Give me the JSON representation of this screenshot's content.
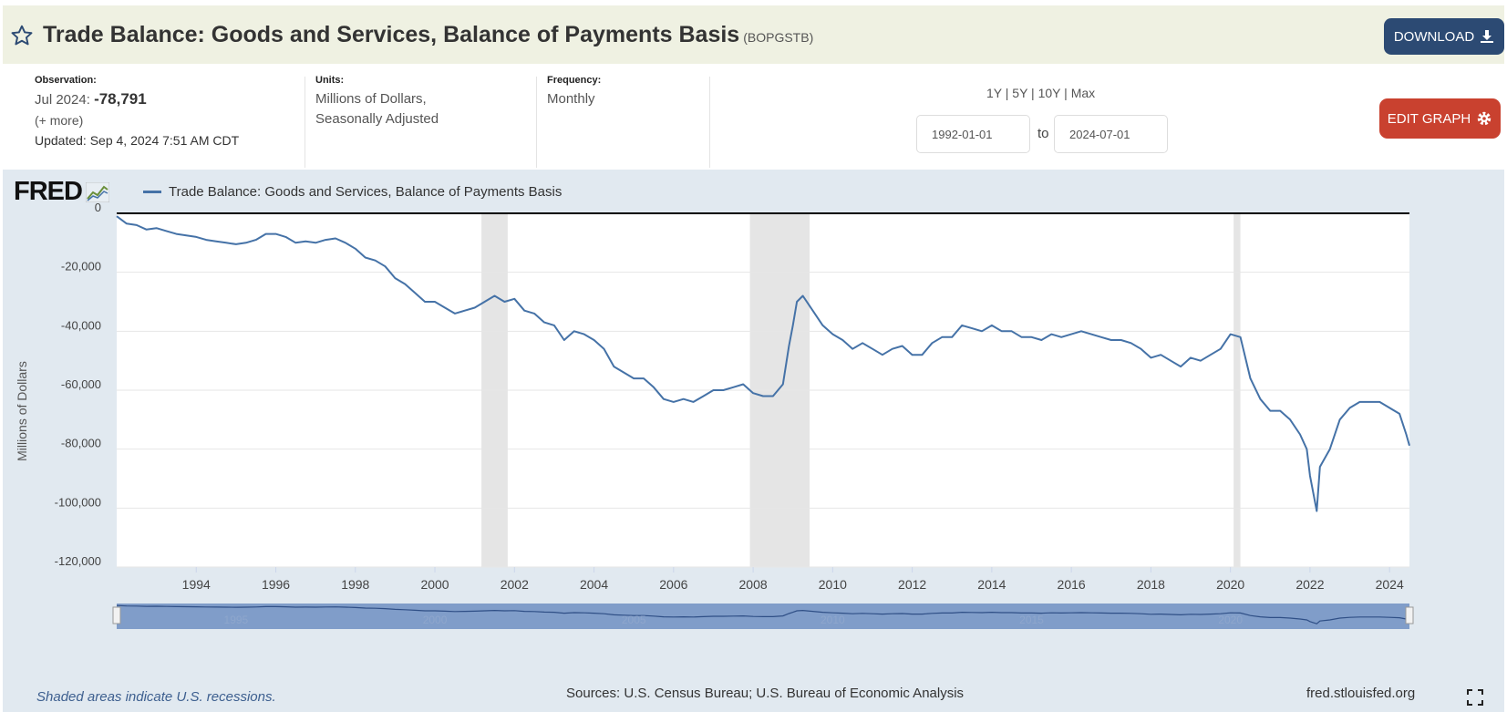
{
  "header": {
    "title": "Trade Balance: Goods and Services, Balance of Payments Basis",
    "series_id": "(BOPGSTB)",
    "download_label": "DOWNLOAD"
  },
  "observation": {
    "label": "Observation:",
    "date": "Jul 2024:",
    "value": "-78,791",
    "more": "(+ more)",
    "updated_label": "Updated:",
    "updated": "Sep 4, 2024 7:51 AM CDT"
  },
  "units": {
    "label": "Units:",
    "line1": "Millions of Dollars,",
    "line2": "Seasonally Adjusted"
  },
  "frequency": {
    "label": "Frequency:",
    "value": "Monthly"
  },
  "range": {
    "links": [
      "1Y",
      "5Y",
      "10Y",
      "Max"
    ],
    "start": "1992-01-01",
    "to_label": "to",
    "end": "2024-07-01"
  },
  "edit_label": "EDIT GRAPH",
  "legend_label": "Trade Balance: Goods and Services, Balance of Payments Basis",
  "logo_text": "FRED",
  "footer": {
    "note": "Shaded areas indicate U.S. recessions.",
    "sources": "Sources: U.S. Census Bureau; U.S. Bureau of Economic Analysis",
    "url": "fred.stlouisfed.org"
  },
  "colors": {
    "line": "#4572a7",
    "recession": "#e5e5e5",
    "header_bg": "#eff1e2",
    "plot_bg": "#e1e9f0",
    "download": "#2c4a73",
    "edit": "#c9412f"
  },
  "chart_data": {
    "type": "line",
    "ylabel": "Millions of Dollars",
    "ylim": [
      -120000,
      0
    ],
    "xlim": [
      1992.0,
      2024.5
    ],
    "y_ticks": [
      0,
      -20000,
      -40000,
      -60000,
      -80000,
      -100000,
      -120000
    ],
    "y_tick_labels": [
      "0",
      "-20,000",
      "-40,000",
      "-60,000",
      "-80,000",
      "-100,000",
      "-120,000"
    ],
    "x_ticks": [
      1994,
      1996,
      1998,
      2000,
      2002,
      2004,
      2006,
      2008,
      2010,
      2012,
      2014,
      2016,
      2018,
      2020,
      2022,
      2024
    ],
    "navigator_labels": [
      "1995",
      "2000",
      "2005",
      "2010",
      "2015",
      "2020"
    ],
    "recessions": [
      [
        2001.17,
        2001.83
      ],
      [
        2007.92,
        2009.42
      ],
      [
        2020.08,
        2020.25
      ]
    ],
    "series": [
      {
        "name": "Trade Balance: Goods and Services, Balance of Payments Basis",
        "x": [
          1992.0,
          1992.25,
          1992.5,
          1992.75,
          1993.0,
          1993.25,
          1993.5,
          1993.75,
          1994.0,
          1994.25,
          1994.5,
          1994.75,
          1995.0,
          1995.25,
          1995.5,
          1995.75,
          1996.0,
          1996.25,
          1996.5,
          1996.75,
          1997.0,
          1997.25,
          1997.5,
          1997.75,
          1998.0,
          1998.25,
          1998.5,
          1998.75,
          1999.0,
          1999.25,
          1999.5,
          1999.75,
          2000.0,
          2000.25,
          2000.5,
          2000.75,
          2001.0,
          2001.25,
          2001.5,
          2001.75,
          2002.0,
          2002.25,
          2002.5,
          2002.75,
          2003.0,
          2003.25,
          2003.5,
          2003.75,
          2004.0,
          2004.25,
          2004.5,
          2004.75,
          2005.0,
          2005.25,
          2005.5,
          2005.75,
          2006.0,
          2006.25,
          2006.5,
          2006.75,
          2007.0,
          2007.25,
          2007.5,
          2007.75,
          2008.0,
          2008.25,
          2008.5,
          2008.75,
          2008.9,
          2009.0,
          2009.1,
          2009.25,
          2009.5,
          2009.75,
          2010.0,
          2010.25,
          2010.5,
          2010.75,
          2011.0,
          2011.25,
          2011.5,
          2011.75,
          2012.0,
          2012.25,
          2012.5,
          2012.75,
          2013.0,
          2013.25,
          2013.5,
          2013.75,
          2014.0,
          2014.25,
          2014.5,
          2014.75,
          2015.0,
          2015.25,
          2015.5,
          2015.75,
          2016.0,
          2016.25,
          2016.5,
          2016.75,
          2017.0,
          2017.25,
          2017.5,
          2017.75,
          2018.0,
          2018.25,
          2018.5,
          2018.75,
          2019.0,
          2019.25,
          2019.5,
          2019.75,
          2020.0,
          2020.25,
          2020.5,
          2020.75,
          2021.0,
          2021.25,
          2021.5,
          2021.75,
          2021.92,
          2022.0,
          2022.17,
          2022.25,
          2022.5,
          2022.75,
          2023.0,
          2023.25,
          2023.5,
          2023.75,
          2024.0,
          2024.25,
          2024.42,
          2024.5
        ],
        "values": [
          -1000,
          -3500,
          -4000,
          -5500,
          -5000,
          -6000,
          -7000,
          -7500,
          -8000,
          -9000,
          -9500,
          -10000,
          -10500,
          -10000,
          -9000,
          -7000,
          -7000,
          -8000,
          -10000,
          -9500,
          -10000,
          -9000,
          -8500,
          -10000,
          -12000,
          -15000,
          -16000,
          -18000,
          -22000,
          -24000,
          -27000,
          -30000,
          -30000,
          -32000,
          -34000,
          -33000,
          -32000,
          -30000,
          -28000,
          -30000,
          -29000,
          -33000,
          -34000,
          -37000,
          -38000,
          -43000,
          -40000,
          -41000,
          -43000,
          -46000,
          -52000,
          -54000,
          -56000,
          -56000,
          -59000,
          -63000,
          -64000,
          -63000,
          -64000,
          -62000,
          -60000,
          -60000,
          -59000,
          -58000,
          -61000,
          -62000,
          -62000,
          -58000,
          -45000,
          -38000,
          -30000,
          -28000,
          -33000,
          -38000,
          -41000,
          -43000,
          -46000,
          -44000,
          -46000,
          -48000,
          -46000,
          -45000,
          -48000,
          -48000,
          -44000,
          -42000,
          -42000,
          -38000,
          -39000,
          -40000,
          -38000,
          -40000,
          -40000,
          -42000,
          -42000,
          -43000,
          -41000,
          -42000,
          -41000,
          -40000,
          -41000,
          -42000,
          -43000,
          -43000,
          -44000,
          -46000,
          -49000,
          -48000,
          -50000,
          -52000,
          -49000,
          -50000,
          -48000,
          -46000,
          -41000,
          -42000,
          -56000,
          -63000,
          -67000,
          -67000,
          -70000,
          -75000,
          -80000,
          -89000,
          -101000,
          -86000,
          -80000,
          -70000,
          -66000,
          -64000,
          -64000,
          -64000,
          -66000,
          -68000,
          -75000,
          -78791
        ]
      }
    ]
  }
}
